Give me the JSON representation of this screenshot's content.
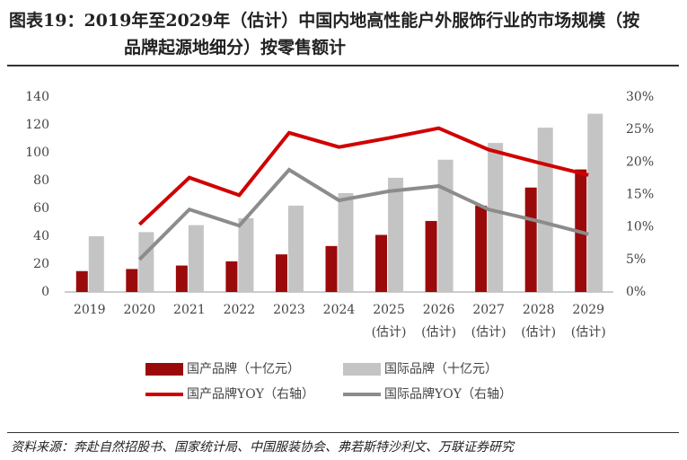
{
  "chart_data": {
    "type": "bar",
    "title": [
      "图表19：2019年至2029年（估计）中国内地高性能户外服饰行业的市场规模（按",
      "品牌起源地细分）按零售额计"
    ],
    "categories": [
      "2019",
      "2020",
      "2021",
      "2022",
      "2023",
      "2024",
      "2025\n(估计)",
      "2026\n(估计)",
      "2027\n(估计)",
      "2028\n(估计)",
      "2029\n(估计)"
    ],
    "series": [
      {
        "name": "国产品牌（十亿元）",
        "type": "bar",
        "color": "#9b0a0a",
        "values": [
          15,
          16.5,
          19,
          22,
          27,
          33,
          41,
          51,
          62,
          75,
          88
        ]
      },
      {
        "name": "国际品牌（十亿元）",
        "type": "bar",
        "color": "#c4c4c4",
        "values": [
          40,
          43,
          48,
          53,
          62,
          71,
          82,
          95,
          107,
          118,
          128
        ]
      },
      {
        "name": "国产品牌YOY（右轴）",
        "type": "line",
        "axis": "y2",
        "color": "#d00000",
        "values": [
          null,
          10.4,
          17.6,
          14.9,
          24.5,
          22.3,
          23.7,
          25.2,
          21.9,
          19.9,
          18.0
        ]
      },
      {
        "name": "国际品牌YOY（右轴）",
        "type": "line",
        "axis": "y2",
        "color": "#8c8c8c",
        "values": [
          null,
          5.0,
          12.7,
          10.2,
          18.8,
          14.1,
          15.5,
          16.3,
          12.7,
          10.9,
          8.9
        ]
      }
    ],
    "ylim": [
      0,
      140
    ],
    "yticks": [
      0,
      20,
      40,
      60,
      80,
      100,
      120,
      140
    ],
    "y2lim": [
      0,
      30
    ],
    "y2ticks": [
      {
        "value": 0,
        "label": "0%"
      },
      {
        "value": 5,
        "label": "5%"
      },
      {
        "value": 10,
        "label": "10%"
      },
      {
        "value": 15,
        "label": "15%"
      },
      {
        "value": 20,
        "label": "20%"
      },
      {
        "value": 25,
        "label": "25%"
      },
      {
        "value": 30,
        "label": "30%"
      }
    ],
    "grid": false,
    "source": "资料来源：奔赴自然招股书、国家统计局、中国服装协会、弗若斯特沙利文、万联证券研究"
  }
}
